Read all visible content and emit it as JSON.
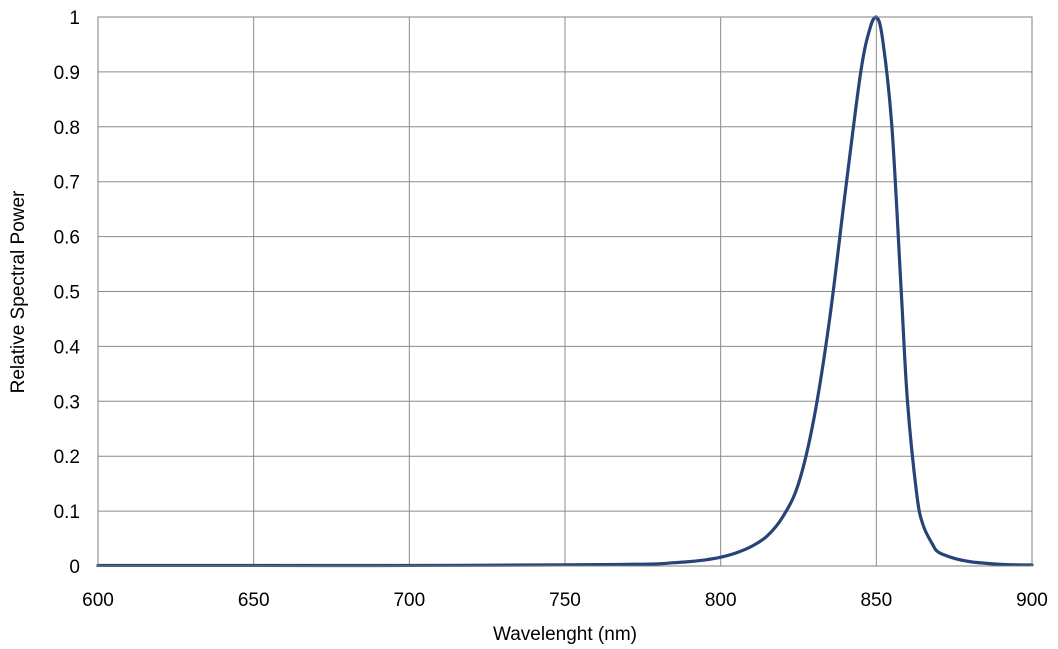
{
  "chart_data": {
    "type": "line",
    "title": "",
    "xlabel": "Wavelenght (nm)",
    "ylabel": "Relative Spectral Power",
    "xlim": [
      600,
      900
    ],
    "ylim": [
      0,
      1
    ],
    "x_ticks": [
      600,
      650,
      700,
      750,
      800,
      850,
      900
    ],
    "x_tick_labels": [
      "600",
      "650",
      "700",
      "750",
      "800",
      "850",
      "900"
    ],
    "y_ticks": [
      0,
      0.1,
      0.2,
      0.3,
      0.4,
      0.5,
      0.6,
      0.7,
      0.8,
      0.9,
      1
    ],
    "y_tick_labels": [
      "0",
      "0.1",
      "0.2",
      "0.3",
      "0.4",
      "0.5",
      "0.6",
      "0.7",
      "0.8",
      "0.9",
      "1"
    ],
    "grid": true,
    "legend": "none",
    "series": [
      {
        "color": "#264478",
        "x": [
          600,
          650,
          700,
          750,
          770,
          780,
          785,
          790,
          795,
          800,
          805,
          810,
          815,
          820,
          825,
          830,
          835,
          840,
          845,
          848,
          850,
          852,
          855,
          858,
          860,
          863,
          865,
          868,
          870,
          875,
          880,
          885,
          890,
          895,
          900
        ],
        "y": [
          0.001,
          0.001,
          0.001,
          0.002,
          0.003,
          0.004,
          0.006,
          0.008,
          0.011,
          0.016,
          0.024,
          0.036,
          0.055,
          0.09,
          0.15,
          0.27,
          0.45,
          0.68,
          0.9,
          0.98,
          1.0,
          0.96,
          0.8,
          0.5,
          0.3,
          0.13,
          0.075,
          0.04,
          0.025,
          0.014,
          0.008,
          0.005,
          0.003,
          0.002,
          0.002
        ]
      }
    ]
  }
}
